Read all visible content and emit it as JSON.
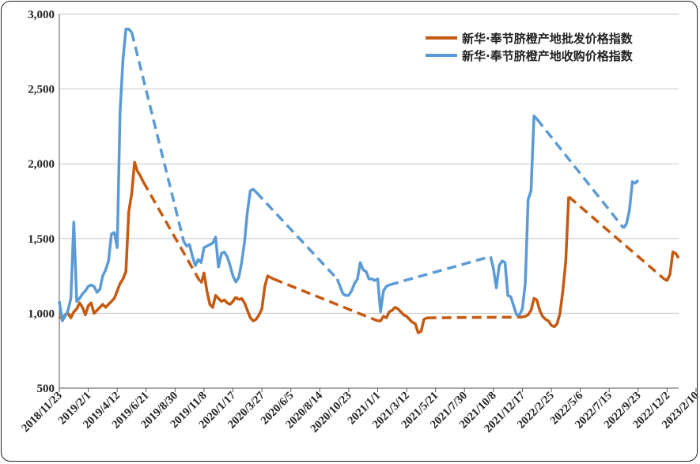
{
  "chart_data": {
    "type": "line",
    "title": "",
    "xlabel": "",
    "ylabel": "",
    "ylim": [
      500,
      3000
    ],
    "y_ticks": [
      "500",
      "1,000",
      "1,500",
      "2,000",
      "2,500",
      "3,000"
    ],
    "x_ticks": [
      "2018/11/23",
      "2019/2/1",
      "2019/4/12",
      "2019/6/21",
      "2019/8/30",
      "2019/11/8",
      "2020/1/17",
      "2020/3/27",
      "2020/6/5",
      "2020/8/14",
      "2020/10/23",
      "2021/1/1",
      "2021/3/12",
      "2021/5/21",
      "2021/7/30",
      "2021/10/8",
      "2021/12/17",
      "2022/2/25",
      "2022/5/6",
      "2022/7/15",
      "2022/9/23",
      "2022/12/2",
      "2023/2/10"
    ],
    "grid": "horizontal",
    "legend_position": "top-right",
    "note": "x values are week indices from 2018/11/23 (tick labels every 10 weeks); dashed segments connect gaps",
    "series": [
      {
        "name": "新华·奉节脐橙产地批发价格指数",
        "color": "#C55A11",
        "segments": [
          {
            "style": "solid",
            "points": [
              [
                0,
                980
              ],
              [
                1,
                960
              ],
              [
                2,
                990
              ],
              [
                3,
                1000
              ],
              [
                4,
                970
              ],
              [
                5,
                1010
              ],
              [
                6,
                1030
              ],
              [
                7,
                1070
              ],
              [
                8,
                1040
              ],
              [
                9,
                990
              ],
              [
                10,
                1050
              ],
              [
                11,
                1070
              ],
              [
                12,
                1000
              ],
              [
                13,
                1020
              ],
              [
                14,
                1040
              ],
              [
                15,
                1060
              ],
              [
                16,
                1040
              ],
              [
                17,
                1060
              ],
              [
                18,
                1080
              ],
              [
                19,
                1100
              ],
              [
                20,
                1150
              ],
              [
                21,
                1200
              ],
              [
                22,
                1230
              ],
              [
                23,
                1280
              ],
              [
                24,
                1680
              ],
              [
                25,
                1800
              ],
              [
                26,
                2010
              ],
              [
                27,
                1950
              ],
              [
                28,
                1920
              ],
              [
                29,
                1880
              ]
            ]
          },
          {
            "style": "dashed",
            "points": [
              [
                29,
                1880
              ],
              [
                49,
                1200
              ]
            ]
          },
          {
            "style": "solid",
            "points": [
              [
                49,
                1200
              ],
              [
                50,
                1270
              ],
              [
                51,
                1150
              ],
              [
                52,
                1060
              ],
              [
                53,
                1040
              ],
              [
                54,
                1120
              ],
              [
                55,
                1100
              ],
              [
                56,
                1080
              ],
              [
                57,
                1090
              ],
              [
                58,
                1070
              ],
              [
                59,
                1060
              ],
              [
                60,
                1080
              ],
              [
                61,
                1110
              ]
            ]
          },
          {
            "style": "dashed",
            "points": [
              [
                61,
                1110
              ],
              [
                62,
                1090
              ]
            ]
          },
          {
            "style": "solid",
            "points": [
              [
                62,
                1090
              ],
              [
                63,
                1100
              ],
              [
                64,
                1070
              ],
              [
                65,
                1020
              ],
              [
                66,
                970
              ],
              [
                67,
                950
              ],
              [
                68,
                960
              ],
              [
                69,
                990
              ],
              [
                70,
                1030
              ],
              [
                71,
                1180
              ],
              [
                72,
                1250
              ],
              [
                73,
                1240
              ],
              [
                74,
                1230
              ]
            ]
          },
          {
            "style": "dashed",
            "points": [
              [
                74,
                1230
              ],
              [
                110,
                950
              ]
            ]
          },
          {
            "style": "solid",
            "points": [
              [
                110,
                950
              ],
              [
                111,
                950
              ],
              [
                112,
                980
              ],
              [
                113,
                970
              ],
              [
                114,
                1010
              ],
              [
                115,
                1020
              ],
              [
                116,
                1040
              ],
              [
                117,
                1030
              ],
              [
                118,
                1010
              ],
              [
                119,
                990
              ],
              [
                120,
                980
              ],
              [
                121,
                960
              ],
              [
                122,
                940
              ],
              [
                123,
                930
              ],
              [
                124,
                870
              ],
              [
                125,
                880
              ],
              [
                126,
                960
              ],
              [
                127,
                970
              ]
            ]
          },
          {
            "style": "dashed",
            "points": [
              [
                127,
                970
              ],
              [
                160,
                975
              ]
            ]
          },
          {
            "style": "solid",
            "points": [
              [
                160,
                975
              ],
              [
                161,
                980
              ],
              [
                162,
                990
              ],
              [
                163,
                1020
              ],
              [
                164,
                1100
              ],
              [
                165,
                1090
              ],
              [
                166,
                1020
              ],
              [
                167,
                980
              ],
              [
                168,
                960
              ],
              [
                169,
                950
              ],
              [
                170,
                920
              ],
              [
                171,
                910
              ],
              [
                172,
                930
              ],
              [
                173,
                1000
              ],
              [
                174,
                1150
              ],
              [
                175,
                1350
              ],
              [
                176,
                1780
              ]
            ]
          },
          {
            "style": "dashed",
            "points": [
              [
                176,
                1780
              ],
              [
                209,
                1230
              ]
            ]
          },
          {
            "style": "solid",
            "points": [
              [
                209,
                1230
              ],
              [
                210,
                1220
              ],
              [
                211,
                1260
              ],
              [
                212,
                1410
              ],
              [
                213,
                1400
              ],
              [
                214,
                1370
              ]
            ]
          }
        ]
      },
      {
        "name": "新华·奉节脐橙产地收购价格指数",
        "color": "#5B9BD5",
        "segments": [
          {
            "style": "solid",
            "points": [
              [
                0,
                1080
              ],
              [
                1,
                950
              ],
              [
                2,
                980
              ],
              [
                3,
                1020
              ],
              [
                4,
                1100
              ],
              [
                5,
                1610
              ],
              [
                6,
                1080
              ],
              [
                7,
                1100
              ],
              [
                8,
                1130
              ],
              [
                9,
                1150
              ],
              [
                10,
                1180
              ],
              [
                11,
                1190
              ],
              [
                12,
                1180
              ],
              [
                13,
                1140
              ],
              [
                14,
                1160
              ],
              [
                15,
                1250
              ],
              [
                16,
                1290
              ],
              [
                17,
                1350
              ],
              [
                18,
                1530
              ],
              [
                19,
                1540
              ],
              [
                20,
                1440
              ],
              [
                21,
                2350
              ],
              [
                22,
                2700
              ],
              [
                23,
                2900
              ],
              [
                24,
                2900
              ],
              [
                25,
                2880
              ]
            ]
          },
          {
            "style": "dashed",
            "points": [
              [
                25,
                2880
              ],
              [
                43,
                1480
              ]
            ]
          },
          {
            "style": "solid",
            "points": [
              [
                43,
                1480
              ],
              [
                44,
                1450
              ],
              [
                45,
                1460
              ],
              [
                46,
                1380
              ],
              [
                47,
                1320
              ],
              [
                48,
                1360
              ],
              [
                49,
                1340
              ],
              [
                50,
                1440
              ],
              [
                51,
                1450
              ],
              [
                52,
                1460
              ],
              [
                53,
                1470
              ],
              [
                54,
                1510
              ],
              [
                55,
                1310
              ],
              [
                56,
                1400
              ],
              [
                57,
                1410
              ],
              [
                58,
                1380
              ],
              [
                59,
                1320
              ],
              [
                60,
                1250
              ],
              [
                61,
                1210
              ],
              [
                62,
                1240
              ],
              [
                63,
                1340
              ],
              [
                64,
                1480
              ],
              [
                65,
                1680
              ],
              [
                66,
                1820
              ],
              [
                67,
                1830
              ],
              [
                68,
                1810
              ]
            ]
          },
          {
            "style": "dashed",
            "points": [
              [
                68,
                1810
              ],
              [
                96,
                1230
              ]
            ]
          },
          {
            "style": "solid",
            "points": [
              [
                96,
                1230
              ],
              [
                97,
                1180
              ],
              [
                98,
                1130
              ],
              [
                99,
                1120
              ],
              [
                100,
                1120
              ],
              [
                101,
                1150
              ],
              [
                102,
                1200
              ],
              [
                103,
                1230
              ],
              [
                104,
                1340
              ],
              [
                105,
                1290
              ],
              [
                106,
                1280
              ],
              [
                107,
                1230
              ],
              [
                108,
                1230
              ],
              [
                109,
                1220
              ],
              [
                110,
                1230
              ],
              [
                111,
                1010
              ],
              [
                112,
                1150
              ],
              [
                113,
                1180
              ],
              [
                114,
                1190
              ]
            ]
          },
          {
            "style": "dashed",
            "points": [
              [
                114,
                1190
              ],
              [
                149,
                1380
              ]
            ]
          },
          {
            "style": "solid",
            "points": [
              [
                149,
                1380
              ],
              [
                150,
                1300
              ],
              [
                151,
                1170
              ],
              [
                152,
                1320
              ],
              [
                153,
                1350
              ],
              [
                154,
                1340
              ],
              [
                155,
                1120
              ],
              [
                156,
                1110
              ],
              [
                157,
                1050
              ],
              [
                158,
                990
              ],
              [
                159,
                990
              ],
              [
                160,
                1030
              ],
              [
                161,
                1200
              ],
              [
                162,
                1760
              ],
              [
                163,
                1820
              ],
              [
                164,
                2320
              ],
              [
                165,
                2300
              ]
            ]
          },
          {
            "style": "dashed",
            "points": [
              [
                165,
                2300
              ],
              [
                195,
                1570
              ]
            ]
          },
          {
            "style": "solid",
            "points": [
              [
                195,
                1570
              ],
              [
                196,
                1600
              ],
              [
                197,
                1690
              ],
              [
                198,
                1880
              ],
              [
                199,
                1870
              ],
              [
                200,
                1890
              ]
            ]
          }
        ]
      }
    ]
  }
}
